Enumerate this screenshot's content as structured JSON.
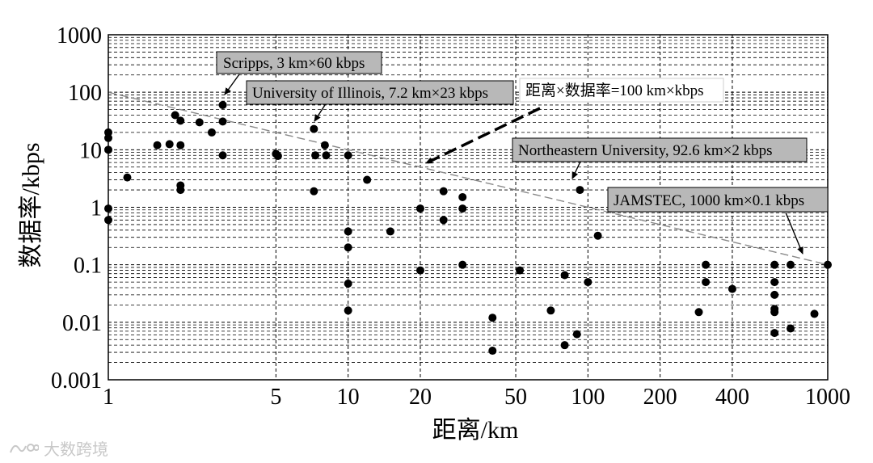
{
  "chart_data": {
    "type": "scatter",
    "xlabel": "距离/km",
    "ylabel": "数据率/kbps",
    "xscale": "log",
    "yscale": "log",
    "xlim": [
      1,
      1000
    ],
    "ylim": [
      0.001,
      1000
    ],
    "grid": true,
    "x_ticks": [
      {
        "value": 1,
        "label": "1"
      },
      {
        "value": 5,
        "label": "5"
      },
      {
        "value": 10,
        "label": "10"
      },
      {
        "value": 20,
        "label": "20"
      },
      {
        "value": 50,
        "label": "50"
      },
      {
        "value": 100,
        "label": "100"
      },
      {
        "value": 200,
        "label": "200"
      },
      {
        "value": 400,
        "label": "400"
      },
      {
        "value": 1000,
        "label": "1000"
      }
    ],
    "y_ticks": [
      {
        "value": 0.001,
        "label": "0.001"
      },
      {
        "value": 0.01,
        "label": "0.01"
      },
      {
        "value": 0.1,
        "label": "0.1"
      },
      {
        "value": 1,
        "label": "1"
      },
      {
        "value": 10,
        "label": "10"
      },
      {
        "value": 100,
        "label": "100"
      },
      {
        "value": 1000,
        "label": "1000"
      }
    ],
    "points": [
      {
        "x": 1,
        "y": 20
      },
      {
        "x": 1,
        "y": 16
      },
      {
        "x": 1,
        "y": 10
      },
      {
        "x": 1,
        "y": 0.95
      },
      {
        "x": 1,
        "y": 0.6
      },
      {
        "x": 1.2,
        "y": 3.3
      },
      {
        "x": 1.6,
        "y": 12
      },
      {
        "x": 1.8,
        "y": 12.5
      },
      {
        "x": 1.9,
        "y": 40
      },
      {
        "x": 2,
        "y": 32
      },
      {
        "x": 2,
        "y": 12
      },
      {
        "x": 2,
        "y": 2.4
      },
      {
        "x": 2,
        "y": 2
      },
      {
        "x": 2.4,
        "y": 30
      },
      {
        "x": 2.7,
        "y": 20
      },
      {
        "x": 3,
        "y": 60
      },
      {
        "x": 3,
        "y": 31
      },
      {
        "x": 3,
        "y": 8
      },
      {
        "x": 5,
        "y": 8.5
      },
      {
        "x": 5.1,
        "y": 7.8
      },
      {
        "x": 7.2,
        "y": 23
      },
      {
        "x": 7.3,
        "y": 8
      },
      {
        "x": 7.2,
        "y": 1.9
      },
      {
        "x": 8,
        "y": 12
      },
      {
        "x": 8.1,
        "y": 8
      },
      {
        "x": 10,
        "y": 8
      },
      {
        "x": 10,
        "y": 0.38
      },
      {
        "x": 10,
        "y": 0.2
      },
      {
        "x": 10,
        "y": 0.047
      },
      {
        "x": 10,
        "y": 0.016
      },
      {
        "x": 12,
        "y": 3
      },
      {
        "x": 15,
        "y": 0.38
      },
      {
        "x": 20,
        "y": 0.95
      },
      {
        "x": 20,
        "y": 0.08
      },
      {
        "x": 25,
        "y": 1.9
      },
      {
        "x": 25,
        "y": 0.6
      },
      {
        "x": 30,
        "y": 1.5
      },
      {
        "x": 30,
        "y": 0.95
      },
      {
        "x": 30,
        "y": 0.1
      },
      {
        "x": 40,
        "y": 0.012
      },
      {
        "x": 40,
        "y": 0.0032
      },
      {
        "x": 52,
        "y": 0.08
      },
      {
        "x": 70,
        "y": 0.016
      },
      {
        "x": 80,
        "y": 0.066
      },
      {
        "x": 80,
        "y": 0.004
      },
      {
        "x": 90,
        "y": 0.0062
      },
      {
        "x": 92.6,
        "y": 2
      },
      {
        "x": 100,
        "y": 0.05
      },
      {
        "x": 110,
        "y": 0.32
      },
      {
        "x": 290,
        "y": 0.015
      },
      {
        "x": 310,
        "y": 0.1
      },
      {
        "x": 310,
        "y": 0.05
      },
      {
        "x": 400,
        "y": 0.038
      },
      {
        "x": 600,
        "y": 0.1
      },
      {
        "x": 600,
        "y": 0.05
      },
      {
        "x": 600,
        "y": 0.03
      },
      {
        "x": 600,
        "y": 0.017
      },
      {
        "x": 600,
        "y": 0.015
      },
      {
        "x": 600,
        "y": 0.0065
      },
      {
        "x": 700,
        "y": 0.1
      },
      {
        "x": 700,
        "y": 0.0078
      },
      {
        "x": 880,
        "y": 0.014
      },
      {
        "x": 1000,
        "y": 0.1
      }
    ],
    "reference_line": {
      "x": [
        1,
        1000
      ],
      "y": [
        100,
        0.1
      ]
    },
    "annotations": [
      {
        "text": "Scripps, 3 km×60 kbps",
        "shaded": true
      },
      {
        "text": "University of Illinois, 7.2 km×23 kbps",
        "shaded": true
      },
      {
        "text": "距离×数据率=100 km×kbps",
        "shaded": false
      },
      {
        "text": "Northeastern University, 92.6 km×2 kbps",
        "shaded": true
      },
      {
        "text": "JAMSTEC, 1000 km×0.1 kbps",
        "shaded": true
      }
    ]
  },
  "watermark": {
    "text": "大数跨境"
  }
}
